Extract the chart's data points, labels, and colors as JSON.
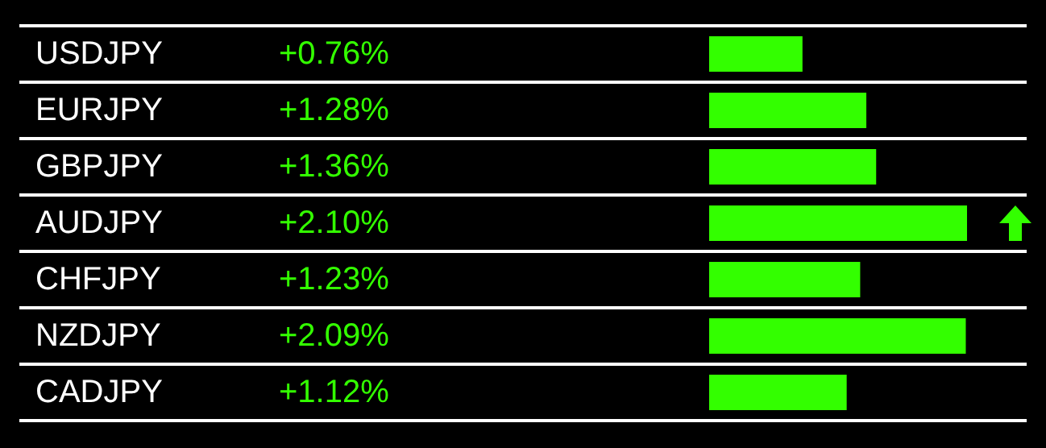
{
  "chart_data": {
    "type": "bar",
    "orientation": "horizontal",
    "grid": true,
    "categories": [
      "USDJPY",
      "EURJPY",
      "GBPJPY",
      "AUDJPY",
      "CHFJPY",
      "NZDJPY",
      "CADJPY"
    ],
    "series": [
      {
        "color": "#33ff00",
        "values": [
          0.76,
          1.28,
          1.36,
          2.1,
          1.23,
          2.09,
          1.12
        ],
        "value_labels": [
          "+0.76%",
          "+1.28%",
          "+1.36%",
          "+2.10%",
          "+1.23%",
          "+2.09%",
          "+1.12%"
        ]
      }
    ]
  }
}
